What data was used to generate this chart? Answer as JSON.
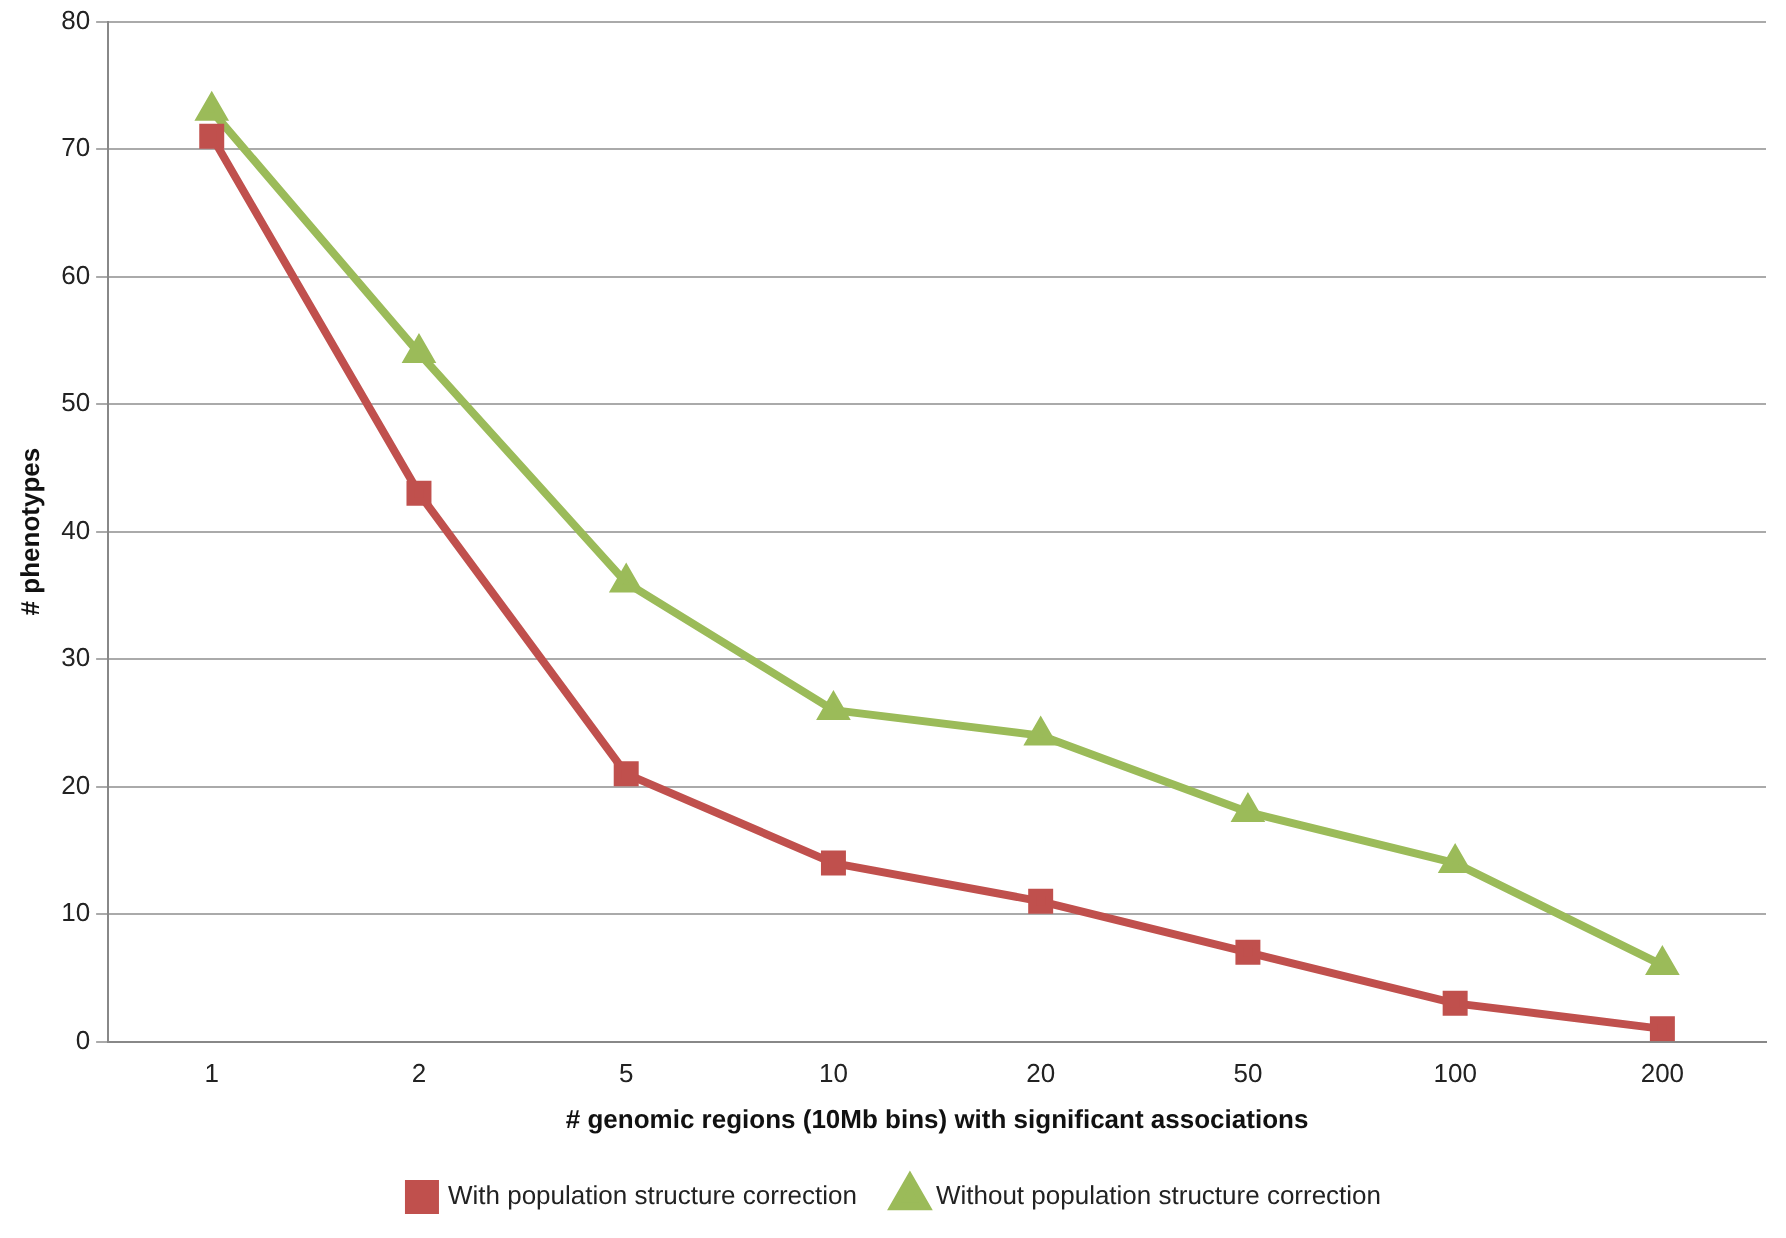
{
  "chart_data": {
    "type": "line",
    "xlabel": "# genomic regions (10Mb bins) with significant associations",
    "ylabel": "# phenotypes",
    "categories": [
      "1",
      "2",
      "5",
      "10",
      "20",
      "50",
      "100",
      "200"
    ],
    "series": [
      {
        "name": "With population structure correction",
        "color": "#c0504d",
        "marker": "square",
        "values": [
          71,
          43,
          21,
          14,
          11,
          7,
          3,
          1
        ]
      },
      {
        "name": "Without population structure correction",
        "color": "#9bbb59",
        "marker": "triangle",
        "values": [
          73,
          54,
          36,
          26,
          24,
          18,
          14,
          6
        ]
      }
    ],
    "ylim": [
      0,
      80
    ],
    "yticks": [
      0,
      10,
      20,
      30,
      40,
      50,
      60,
      70,
      80
    ],
    "grid": "y",
    "legend": "bottom",
    "line_style": "solid"
  }
}
